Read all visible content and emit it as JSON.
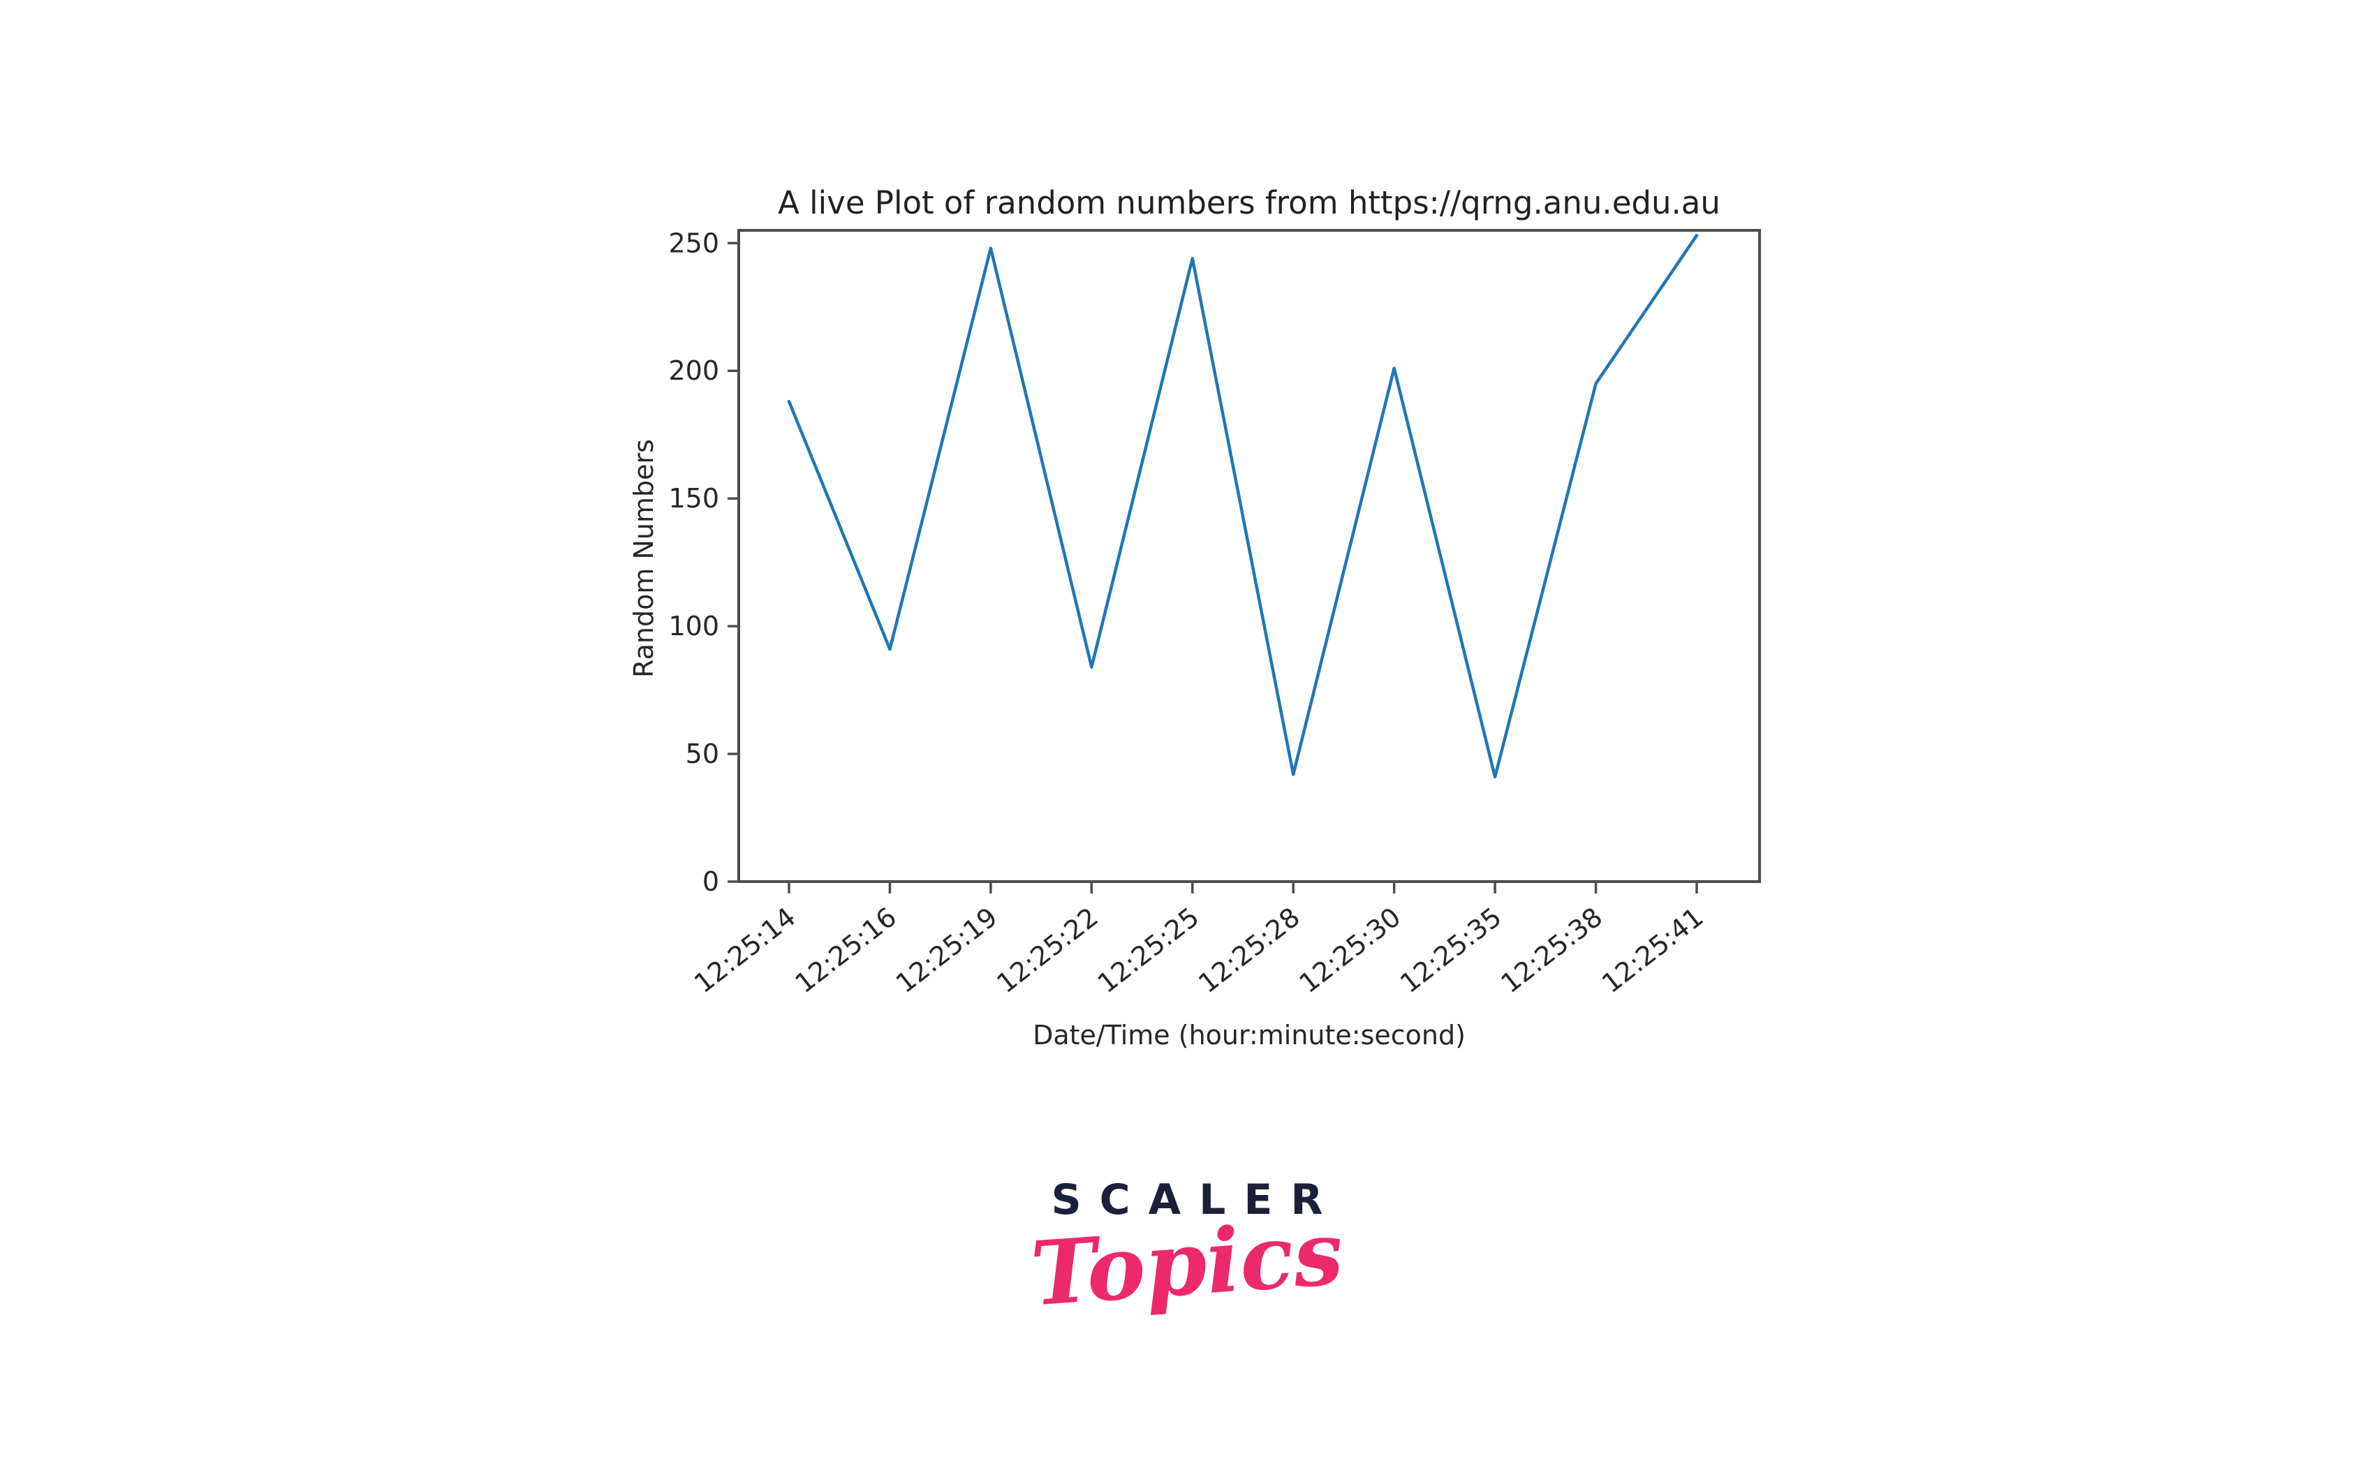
{
  "page": {
    "background": "#ffffff"
  },
  "chart_data": {
    "type": "line",
    "title": "A live Plot of random numbers from https://qrng.anu.edu.au",
    "xlabel": "Date/Time (hour:minute:second)",
    "ylabel": "Random Numbers",
    "categories": [
      "12:25:14",
      "12:25:16",
      "12:25:19",
      "12:25:22",
      "12:25:25",
      "12:25:28",
      "12:25:30",
      "12:25:35",
      "12:25:38",
      "12:25:41"
    ],
    "values": [
      188,
      91,
      248,
      84,
      244,
      42,
      201,
      41,
      195,
      253
    ],
    "yticks": [
      0,
      50,
      100,
      150,
      200,
      250
    ],
    "ylim": [
      0,
      255
    ],
    "xtick_rotation_deg": 38,
    "line_color": "#1f77b4",
    "axis_color": "#4d4d4d",
    "grid": false,
    "legend": null
  },
  "logo": {
    "brand": "SCALER",
    "subbrand": "Topics",
    "brand_color": "#1a2138",
    "accent_color": "#ec296a"
  }
}
